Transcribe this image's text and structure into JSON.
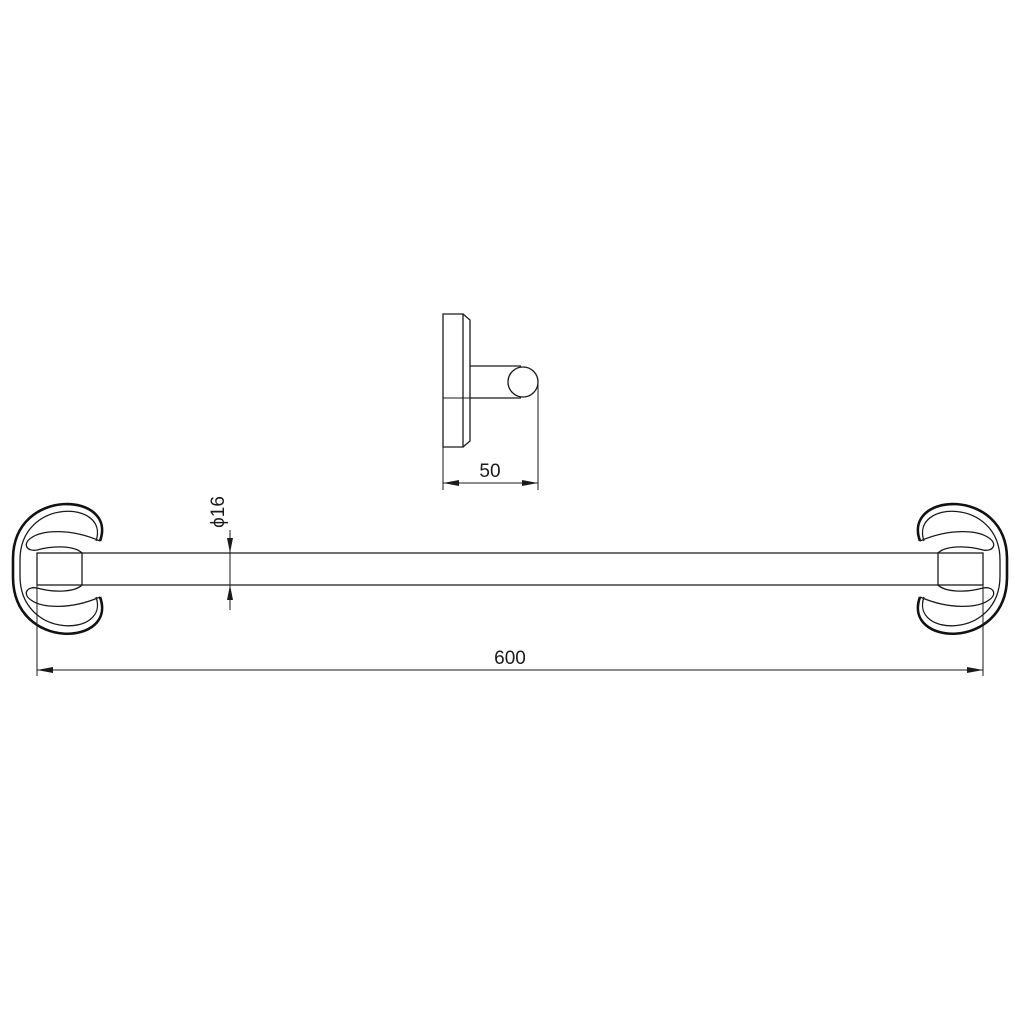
{
  "dimensions": {
    "depth_label": "50",
    "diameter_label": "ϕ16",
    "length_label": "600"
  },
  "colors": {
    "line": "#1a1a1a",
    "background": "#ffffff"
  }
}
